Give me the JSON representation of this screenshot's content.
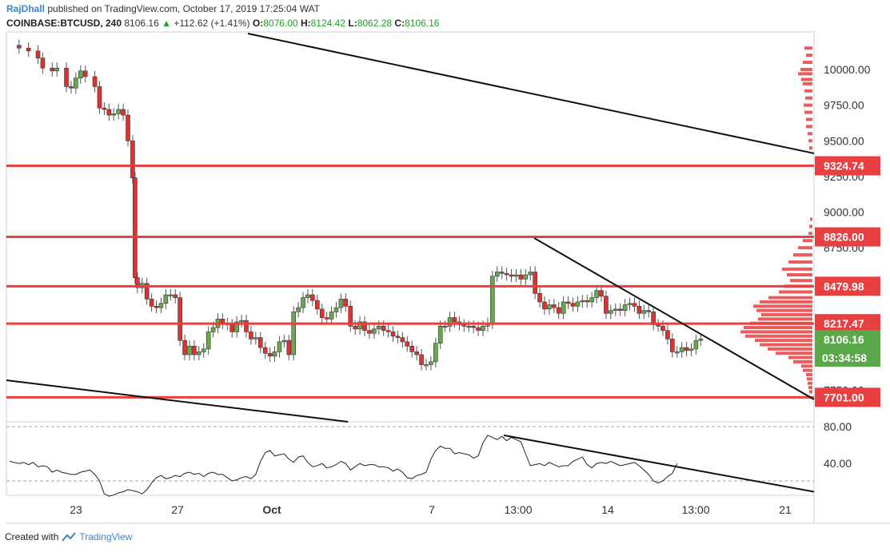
{
  "header": {
    "author": "RajDhall",
    "published": "published on TradingView.com, October 17, 2019 17:25:04 WAT",
    "symbol": "COINBASE:BTCUSD, 240",
    "price": "8106.16",
    "change_arrow": "▲",
    "change": "+112.62 (+1.41%)",
    "o_label": "O:",
    "o": "8076.00",
    "h_label": "H:",
    "h": "8124.42",
    "l_label": "L:",
    "l": "8062.28",
    "c_label": "C:",
    "c": "8106.16"
  },
  "footer": {
    "created_with": "Created with",
    "brand": "TradingView"
  },
  "colors": {
    "up": "#6aa84f",
    "down": "#e03030",
    "level": "#e84040",
    "current": "#5aa84a",
    "volume": "#e84040"
  },
  "chart_data": [
    {
      "type": "candlestick",
      "title": "",
      "price_axis": {
        "ylim": [
          7650,
          10250
        ],
        "ticks": [
          "10000.00",
          "9750.00",
          "9500.00",
          "9250.00",
          "9000.00",
          "8750.00",
          "7750.00"
        ]
      },
      "time_axis": {
        "ticks": [
          "23",
          "27",
          "Oct",
          "7",
          "13:00",
          "14",
          "13:00",
          "21"
        ]
      },
      "level_labels": [
        "9324.74",
        "8826.00",
        "8479.98",
        "8217.47",
        "7701.00"
      ],
      "current_price_label": "8106.16",
      "countdown_label": "03:34:58",
      "horizontal_levels": [
        9324.74,
        8826.0,
        8479.98,
        8217.47,
        7701.0
      ],
      "close_path": [
        [
          0,
          10170
        ],
        [
          2,
          10150
        ],
        [
          4,
          10130
        ],
        [
          6,
          10080
        ],
        [
          7,
          10010
        ],
        [
          9,
          9990
        ],
        [
          10,
          10010
        ],
        [
          12,
          9880
        ],
        [
          13,
          9870
        ],
        [
          14,
          9940
        ],
        [
          15,
          9990
        ],
        [
          16,
          9950
        ],
        [
          18,
          9880
        ],
        [
          19,
          9730
        ],
        [
          20,
          9720
        ],
        [
          21,
          9680
        ],
        [
          22,
          9690
        ],
        [
          23,
          9720
        ],
        [
          24,
          9680
        ],
        [
          25,
          9500
        ],
        [
          26,
          9240
        ],
        [
          26.5,
          8540
        ],
        [
          27,
          8470
        ],
        [
          28,
          8500
        ],
        [
          29,
          8390
        ],
        [
          30,
          8340
        ],
        [
          31,
          8330
        ],
        [
          32,
          8360
        ],
        [
          33,
          8420
        ],
        [
          34,
          8420
        ],
        [
          35,
          8400
        ],
        [
          36,
          8100
        ],
        [
          37,
          8000
        ],
        [
          38,
          8060
        ],
        [
          39,
          8000
        ],
        [
          40,
          8020
        ],
        [
          41,
          8040
        ],
        [
          42,
          8160
        ],
        [
          43,
          8190
        ],
        [
          44,
          8250
        ],
        [
          45,
          8220
        ],
        [
          46,
          8210
        ],
        [
          47,
          8160
        ],
        [
          48,
          8230
        ],
        [
          49,
          8240
        ],
        [
          50,
          8160
        ],
        [
          51,
          8110
        ],
        [
          52,
          8120
        ],
        [
          53,
          8050
        ],
        [
          54,
          8010
        ],
        [
          55,
          7990
        ],
        [
          56,
          8020
        ],
        [
          57,
          8090
        ],
        [
          58,
          8100
        ],
        [
          59,
          8000
        ],
        [
          60,
          8300
        ],
        [
          61,
          8330
        ],
        [
          62,
          8400
        ],
        [
          63,
          8420
        ],
        [
          64,
          8380
        ],
        [
          65,
          8320
        ],
        [
          66,
          8260
        ],
        [
          67,
          8250
        ],
        [
          68,
          8300
        ],
        [
          69,
          8330
        ],
        [
          70,
          8390
        ],
        [
          71,
          8340
        ],
        [
          72,
          8200
        ],
        [
          73,
          8180
        ],
        [
          74,
          8230
        ],
        [
          75,
          8170
        ],
        [
          76,
          8150
        ],
        [
          77,
          8180
        ],
        [
          78,
          8200
        ],
        [
          79,
          8170
        ],
        [
          80,
          8160
        ],
        [
          81,
          8130
        ],
        [
          82,
          8120
        ],
        [
          83,
          8090
        ],
        [
          84,
          8060
        ],
        [
          85,
          8020
        ],
        [
          86,
          8000
        ],
        [
          87,
          7930
        ],
        [
          88,
          7930
        ],
        [
          89,
          7950
        ],
        [
          90,
          8080
        ],
        [
          91,
          8200
        ],
        [
          92,
          8200
        ],
        [
          93,
          8260
        ],
        [
          94,
          8230
        ],
        [
          95,
          8210
        ],
        [
          96,
          8200
        ],
        [
          97,
          8200
        ],
        [
          98,
          8190
        ],
        [
          99,
          8170
        ],
        [
          100,
          8200
        ],
        [
          101,
          8220
        ],
        [
          102,
          8550
        ],
        [
          103,
          8580
        ],
        [
          104,
          8570
        ],
        [
          105,
          8560
        ],
        [
          106,
          8550
        ],
        [
          107,
          8560
        ],
        [
          108,
          8530
        ],
        [
          109,
          8560
        ],
        [
          110,
          8580
        ],
        [
          111,
          8430
        ],
        [
          112,
          8370
        ],
        [
          113,
          8320
        ],
        [
          114,
          8350
        ],
        [
          115,
          8330
        ],
        [
          116,
          8290
        ],
        [
          117,
          8370
        ],
        [
          118,
          8360
        ],
        [
          119,
          8340
        ],
        [
          120,
          8370
        ],
        [
          121,
          8380
        ],
        [
          122,
          8370
        ],
        [
          123,
          8400
        ],
        [
          124,
          8450
        ],
        [
          125,
          8410
        ],
        [
          126,
          8290
        ],
        [
          127,
          8310
        ],
        [
          128,
          8320
        ],
        [
          129,
          8310
        ],
        [
          130,
          8350
        ],
        [
          131,
          8360
        ],
        [
          132,
          8340
        ],
        [
          133,
          8290
        ],
        [
          134,
          8310
        ],
        [
          135,
          8300
        ],
        [
          136,
          8210
        ],
        [
          137,
          8200
        ],
        [
          138,
          8170
        ],
        [
          139,
          8110
        ],
        [
          140,
          8020
        ],
        [
          141,
          8020
        ],
        [
          142,
          8050
        ],
        [
          143,
          8030
        ],
        [
          144,
          8040
        ],
        [
          145,
          8100
        ],
        [
          146,
          8110
        ]
      ]
    },
    {
      "type": "line",
      "title": "",
      "ylim": [
        10,
        90
      ],
      "y_ticks": [
        "80.00",
        "40.00"
      ],
      "reference_lines": [
        70,
        30
      ],
      "values": [
        48,
        47,
        46,
        47,
        45,
        47,
        43,
        44,
        43,
        38,
        40,
        38,
        37,
        36,
        36,
        38,
        39,
        40,
        36,
        30,
        18,
        16,
        17,
        19,
        20,
        22,
        21,
        20,
        18,
        22,
        28,
        33,
        35,
        32,
        33,
        35,
        34,
        37,
        38,
        36,
        37,
        34,
        37,
        38,
        36,
        36,
        33,
        30,
        31,
        33,
        34,
        32,
        36,
        48,
        56,
        58,
        53,
        54,
        55,
        50,
        47,
        52,
        53,
        47,
        43,
        44,
        46,
        42,
        43,
        45,
        48,
        46,
        40,
        43,
        46,
        44,
        45,
        45,
        43,
        43,
        42,
        39,
        41,
        38,
        33,
        32,
        35,
        36,
        38,
        50,
        58,
        62,
        60,
        60,
        55,
        56,
        55,
        54,
        51,
        53,
        65,
        72,
        70,
        68,
        71,
        67,
        70,
        68,
        66,
        55,
        44,
        45,
        46,
        44,
        47,
        45,
        43,
        44,
        44,
        48,
        50,
        52,
        45,
        42,
        46,
        47,
        46,
        48,
        46,
        44,
        45,
        46,
        47,
        44,
        40,
        36,
        30,
        28,
        30,
        34,
        37,
        46
      ],
      "trendline": [
        [
          101,
          72
        ],
        [
          160,
          20
        ]
      ]
    }
  ]
}
